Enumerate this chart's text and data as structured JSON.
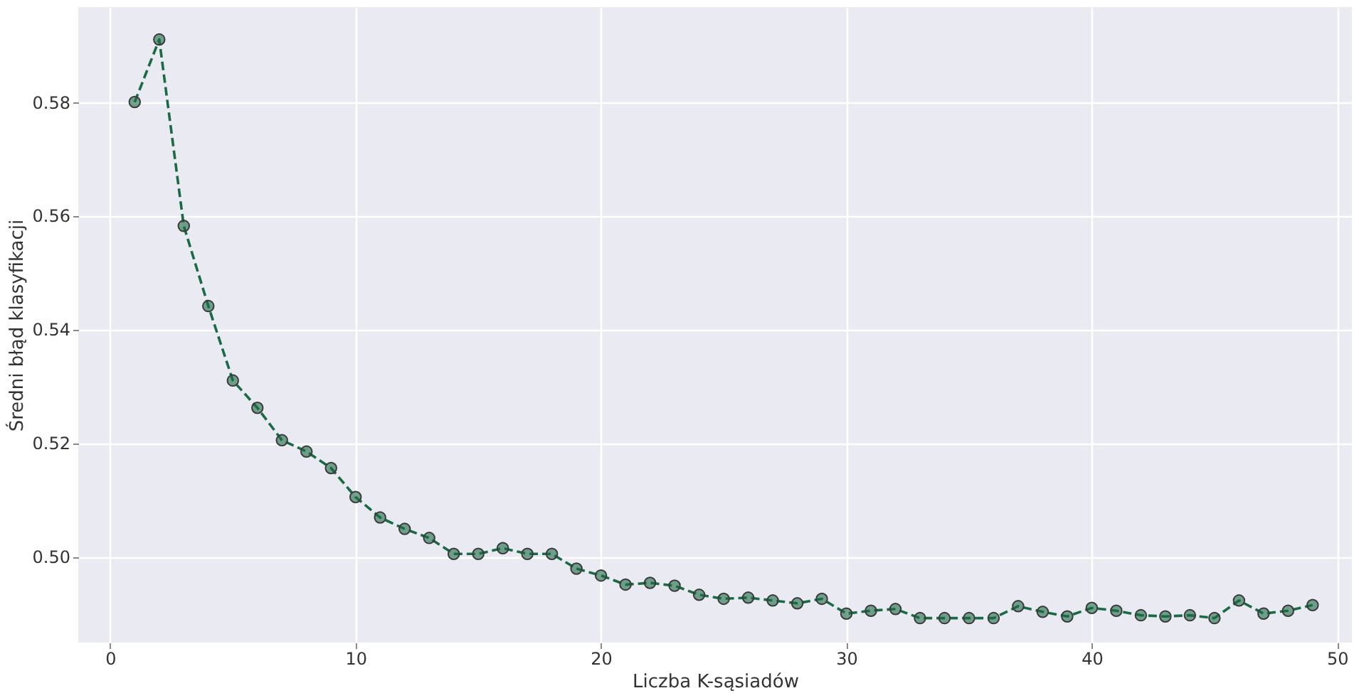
{
  "chart_data": {
    "type": "line",
    "xlabel": "Liczba K-sąsiadów",
    "ylabel": "Średni błąd klasyfikacji",
    "x": [
      1,
      2,
      3,
      4,
      5,
      6,
      7,
      8,
      9,
      10,
      11,
      12,
      13,
      14,
      15,
      16,
      17,
      18,
      19,
      20,
      21,
      22,
      23,
      24,
      25,
      26,
      27,
      28,
      29,
      30,
      31,
      32,
      33,
      34,
      35,
      36,
      37,
      38,
      39,
      40,
      41,
      42,
      43,
      44,
      45,
      46,
      47,
      48,
      49
    ],
    "series": [
      {
        "color": "#1a6b44",
        "values": [
          0.58,
          0.591,
          0.5582,
          0.5441,
          0.531,
          0.5262,
          0.5205,
          0.5185,
          0.5156,
          0.5105,
          0.5069,
          0.5049,
          0.5033,
          0.5005,
          0.5005,
          0.5015,
          0.5005,
          0.5005,
          0.4979,
          0.4967,
          0.4951,
          0.4954,
          0.4949,
          0.4933,
          0.4926,
          0.4928,
          0.4923,
          0.4918,
          0.4926,
          0.49,
          0.4905,
          0.4908,
          0.4892,
          0.4892,
          0.4892,
          0.4892,
          0.4913,
          0.4903,
          0.4895,
          0.491,
          0.4905,
          0.4897,
          0.4895,
          0.4897,
          0.4892,
          0.4923,
          0.49,
          0.4905,
          0.4915
        ]
      }
    ],
    "xlim": [
      -1.3,
      50.6
    ],
    "ylim": [
      0.4849,
      0.5967
    ],
    "xticks": [
      0,
      10,
      20,
      30,
      40,
      50
    ],
    "yticks": [
      {
        "value": 0.5,
        "label": "0.50"
      },
      0.52,
      0.54,
      0.56,
      0.58
    ],
    "grid": true,
    "marker": "circle",
    "line_style": "dashed"
  }
}
